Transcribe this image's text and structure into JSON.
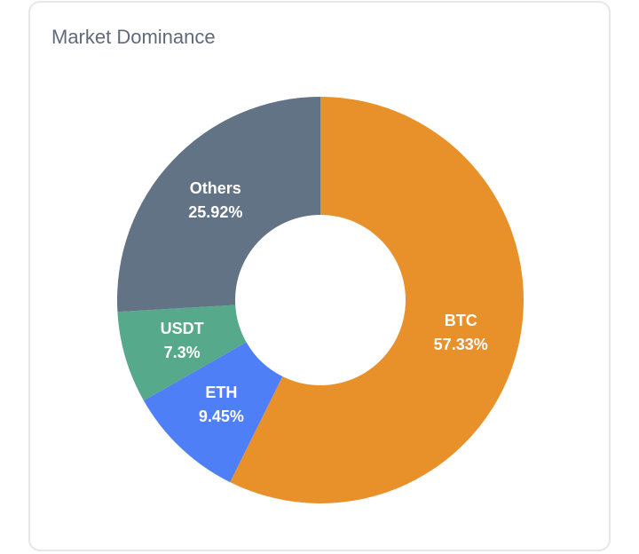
{
  "chart_data": {
    "type": "donut",
    "title": "Market Dominance",
    "categories": [
      "BTC",
      "ETH",
      "USDT",
      "Others"
    ],
    "values": [
      57.33,
      9.45,
      7.3,
      25.92
    ],
    "value_labels": [
      "57.33%",
      "9.45%",
      "7.3%",
      "25.92%"
    ],
    "colors": [
      "#e8912a",
      "#4f7ff7",
      "#56a98a",
      "#637386"
    ]
  }
}
